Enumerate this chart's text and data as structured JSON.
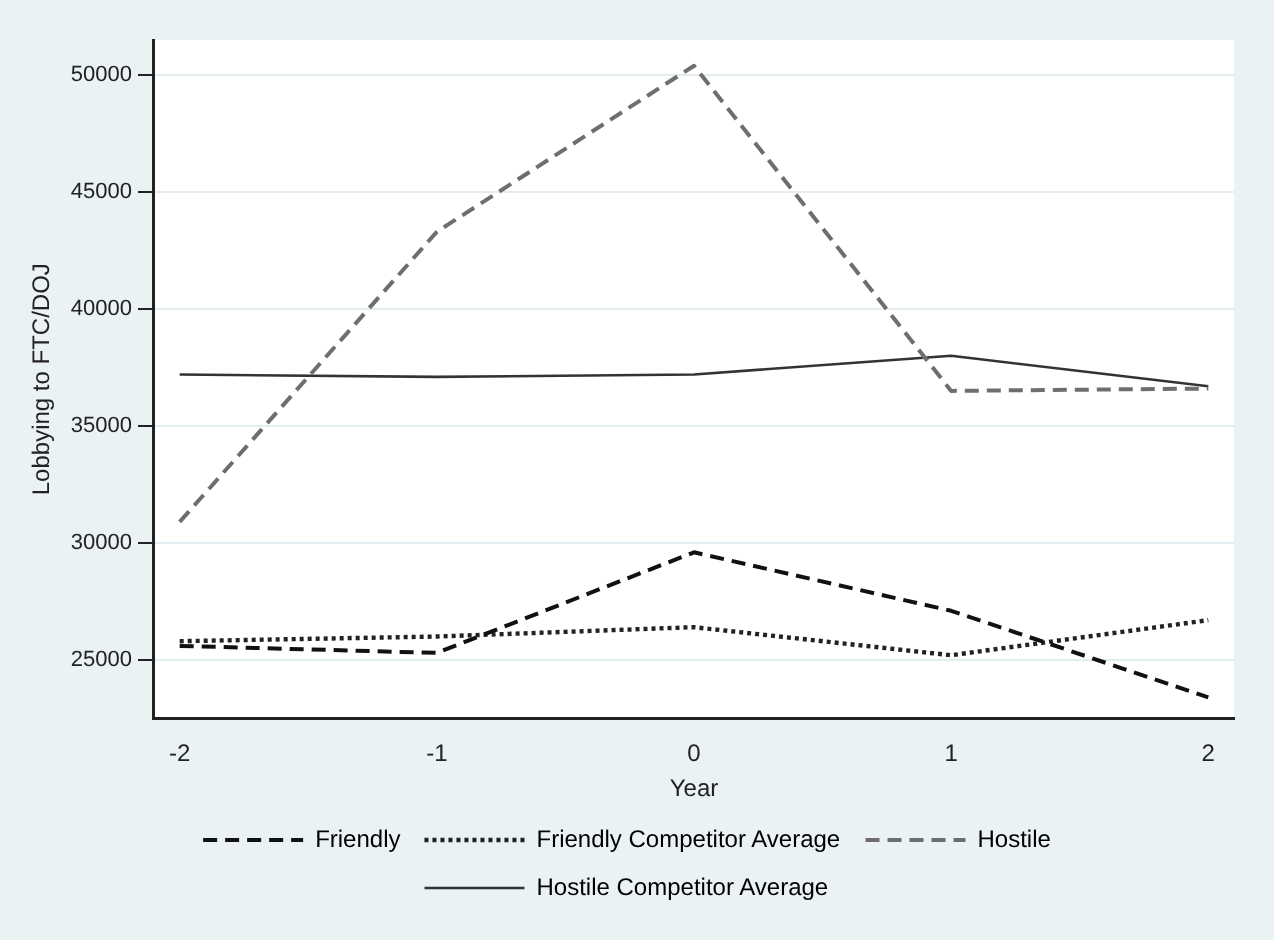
{
  "chart_data": {
    "type": "line",
    "xlabel": "Year",
    "ylabel": "Lobbying to FTC/DOJ",
    "x": [
      -2,
      -1,
      0,
      1,
      2
    ],
    "xlim": [
      -2.1,
      2.1
    ],
    "xticks": [
      -2,
      -1,
      0,
      1,
      2
    ],
    "ylim": [
      22500,
      51500
    ],
    "yticks": [
      25000,
      30000,
      35000,
      40000,
      45000,
      50000
    ],
    "grid": "y",
    "legend": "bottom",
    "series": [
      {
        "name": "Friendly",
        "color": "#111111",
        "line_style": "dashed",
        "values": [
          25600,
          25300,
          29600,
          27100,
          23400
        ]
      },
      {
        "name": "Friendly Competitor Average",
        "color": "#222222",
        "line_style": "dotted",
        "values": [
          25800,
          26000,
          26400,
          25200,
          26700
        ]
      },
      {
        "name": "Hostile",
        "color": "#6e6e6e",
        "line_style": "dashed",
        "values": [
          30900,
          43300,
          50400,
          36500,
          36600
        ]
      },
      {
        "name": "Hostile Competitor Average",
        "color": "#333333",
        "line_style": "solid",
        "values": [
          37200,
          37100,
          37200,
          38000,
          36700
        ]
      }
    ]
  }
}
